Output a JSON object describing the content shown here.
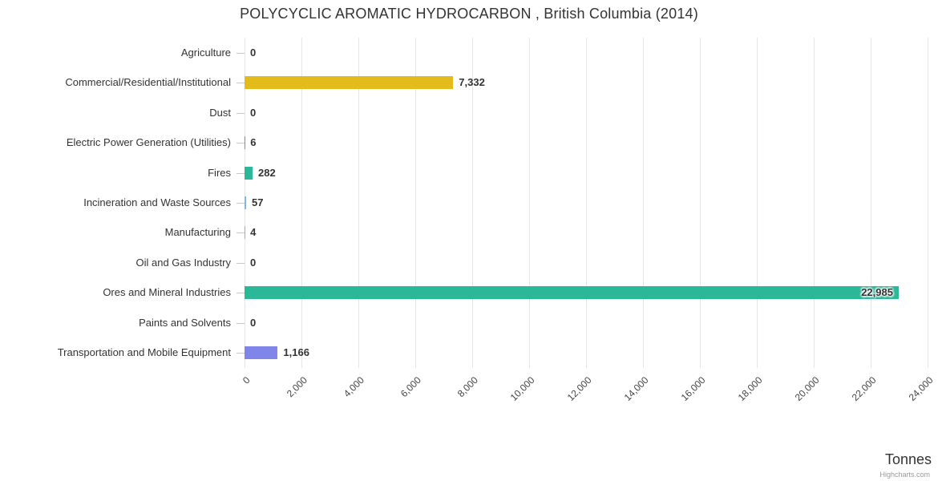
{
  "credit": "Highcharts.com",
  "chart_data": {
    "type": "bar",
    "orientation": "horizontal",
    "title": "POLYCYCLIC AROMATIC HYDROCARBON , British Columbia (2014)",
    "xlabel": "Tonnes",
    "ylabel": "",
    "categories": [
      "Agriculture",
      "Commercial/Residential/Institutional",
      "Dust",
      "Electric Power Generation (Utilities)",
      "Fires",
      "Incineration and Waste Sources",
      "Manufacturing",
      "Oil and Gas Industry",
      "Ores and Mineral Industries",
      "Paints and Solvents",
      "Transportation and Mobile Equipment"
    ],
    "values": [
      0,
      7332,
      0,
      6,
      282,
      57,
      4,
      0,
      22985,
      0,
      1166
    ],
    "value_labels": [
      "0",
      "7,332",
      "0",
      "6",
      "282",
      "57",
      "4",
      "0",
      "22,985",
      "0",
      "1,166"
    ],
    "bar_colors": [
      "#7cb5ec",
      "#e3bb1a",
      "#7cb5ec",
      "#2ab898",
      "#2ab898",
      "#7cb5ec",
      "#7cb5ec",
      "#7cb5ec",
      "#2ab898",
      "#7cb5ec",
      "#8085e9"
    ],
    "x_ticks": [
      "0",
      "2,000",
      "4,000",
      "6,000",
      "8,000",
      "10,000",
      "12,000",
      "14,000",
      "16,000",
      "18,000",
      "20,000",
      "22,000",
      "24,000"
    ],
    "xlim": [
      0,
      24000
    ],
    "grid": true,
    "legend": false
  }
}
